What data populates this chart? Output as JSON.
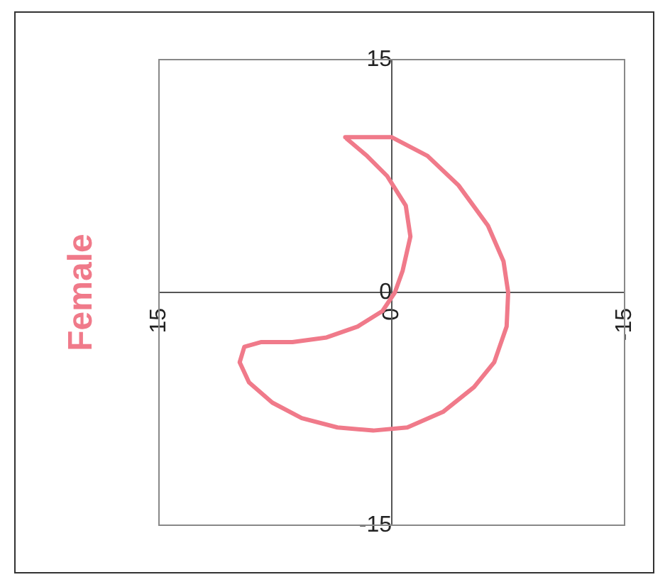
{
  "chart_data": {
    "type": "line",
    "title": "Female",
    "x": [
      3.0,
      1.9,
      0.0,
      -2.3,
      -4.3,
      -6.2,
      -7.2,
      -7.5,
      -7.4,
      -6.6,
      -5.3,
      -3.3,
      -1.0,
      1.2,
      3.5,
      5.8,
      7.7,
      9.2,
      9.8,
      9.5,
      8.4,
      6.4,
      4.2,
      2.2,
      0.6,
      -0.2,
      -0.7,
      -1.2,
      -0.9,
      0.3,
      1.6,
      2.9
    ],
    "series": [
      {
        "color": "#f07a8a",
        "values": [
          10.0,
          10.0,
          10.0,
          8.8,
          6.9,
          4.3,
          2.0,
          0.0,
          -2.2,
          -4.5,
          -6.1,
          -7.7,
          -8.7,
          -8.9,
          -8.7,
          -8.1,
          -7.1,
          -5.8,
          -4.5,
          -3.5,
          -3.2,
          -3.2,
          -2.9,
          -2.2,
          -1.2,
          0.0,
          1.4,
          3.6,
          5.6,
          7.5,
          8.8,
          9.9
        ]
      }
    ],
    "xlim": [
      15,
      -15
    ],
    "xticks": [
      15,
      0,
      -15
    ],
    "ylim": [
      -15,
      15
    ],
    "yticks": [
      -15,
      0,
      15
    ],
    "legend": false,
    "marker": "none",
    "line_style": "solid"
  }
}
